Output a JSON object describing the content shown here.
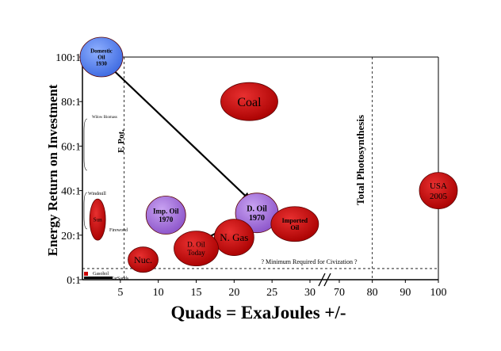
{
  "chart_data": {
    "type": "bubble",
    "title": "",
    "xlabel": "Quads = ExaJoules +/-",
    "ylabel": "Energy Return on Investment",
    "x_ticks": [
      "5",
      "10",
      "15",
      "20",
      "25",
      "30",
      "70",
      "80",
      "90",
      "100"
    ],
    "x_tick_values": [
      5,
      10,
      15,
      20,
      25,
      30,
      70,
      80,
      90,
      100
    ],
    "x_scale": "broken",
    "x_break_between": [
      30,
      70
    ],
    "y_ticks": [
      "0:1",
      "20:1",
      "40:1",
      "60:1",
      "80:1",
      "100:1"
    ],
    "y_tick_values": [
      0,
      20,
      40,
      60,
      80,
      100
    ],
    "ylim": [
      0,
      100
    ],
    "grid": false,
    "colors": {
      "red": "#cc0000",
      "blue": "#4a79e8",
      "purple": "#9a62d6",
      "black": "#000000"
    },
    "bubbles": [
      {
        "label": "Domestic Oil 1930",
        "lines": [
          "Domestic",
          "Oil",
          "1930"
        ],
        "x": 2.5,
        "y": 100,
        "color": "blue"
      },
      {
        "label": "Coal",
        "lines": [
          "Coal"
        ],
        "x": 22,
        "y": 80,
        "color": "red"
      },
      {
        "label": "USA 2005",
        "lines": [
          "USA",
          "2005"
        ],
        "x": 100,
        "y": 40,
        "color": "red"
      },
      {
        "label": "Imp. Oil 1970",
        "lines": [
          "Imp. Oil",
          "1970"
        ],
        "x": 11,
        "y": 29,
        "color": "purple"
      },
      {
        "label": "D. Oil 1970",
        "lines": [
          "D. Oil",
          "1970"
        ],
        "x": 23,
        "y": 30,
        "color": "purple"
      },
      {
        "label": "Imported Oil",
        "lines": [
          "Imported",
          "Oil"
        ],
        "x": 28,
        "y": 25,
        "color": "red"
      },
      {
        "label": "N. Gas",
        "lines": [
          "N. Gas"
        ],
        "x": 20,
        "y": 19,
        "color": "red"
      },
      {
        "label": "D. Oil Today",
        "lines": [
          "D. Oil",
          "Today"
        ],
        "x": 15,
        "y": 14,
        "color": "red"
      },
      {
        "label": "Nuc.",
        "lines": [
          "Nuc."
        ],
        "x": 8,
        "y": 9,
        "color": "red"
      },
      {
        "label": "Sun",
        "lines": [
          "Sun"
        ],
        "x": 2,
        "y": 27,
        "color": "red"
      }
    ],
    "arrows": [
      {
        "from": [
          3.5,
          96
        ],
        "to": [
          22,
          36
        ]
      },
      {
        "from": [
          21,
          27
        ],
        "to": [
          16,
          18
        ]
      }
    ],
    "small_labels": [
      "Wilow Biomass",
      "Windmill",
      "Firewood",
      "Gasohol",
      "TarSands"
    ],
    "annotations": {
      "fpot": "F. Pot.",
      "photosynthesis": "Total Photosynthesis",
      "minimum": "? Minimum Required for Civization ?"
    },
    "reference_lines": {
      "minimum_eroi": 5,
      "fpot_x": 5.5,
      "photosynthesis_x": 80,
      "right_edge_x": 100
    }
  }
}
